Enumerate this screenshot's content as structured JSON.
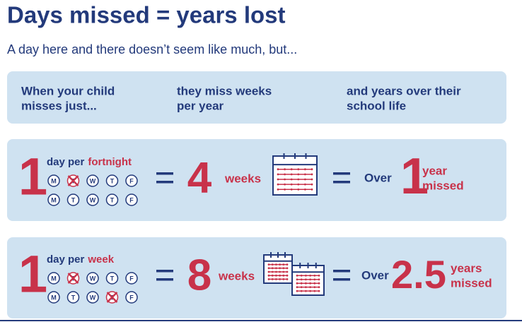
{
  "header": {
    "title": "Days missed = years lost",
    "subtitle": "A day here and there doesn’t seem like much, but..."
  },
  "columns": [
    [
      "When your child",
      "misses just..."
    ],
    [
      "they miss weeks",
      "per year"
    ],
    [
      "and years over their",
      "school life"
    ]
  ],
  "rows": [
    {
      "days": "1",
      "per": "day per",
      "period": "fortnight",
      "weeks": [
        [
          {
            "letter": "M",
            "missed": false
          },
          {
            "letter": "T",
            "missed": true
          },
          {
            "letter": "W",
            "missed": false
          },
          {
            "letter": "T",
            "missed": false
          },
          {
            "letter": "F",
            "missed": false
          }
        ],
        [
          {
            "letter": "M",
            "missed": false
          },
          {
            "letter": "T",
            "missed": false
          },
          {
            "letter": "W",
            "missed": false
          },
          {
            "letter": "T",
            "missed": false
          },
          {
            "letter": "F",
            "missed": false
          }
        ]
      ],
      "weeks_missed": "4",
      "weeks_unit": "weeks",
      "calendars": 1,
      "over": "Over",
      "years": "1",
      "years_unit": [
        "year",
        "missed"
      ]
    },
    {
      "days": "1",
      "per": "day per",
      "period": "week",
      "weeks": [
        [
          {
            "letter": "M",
            "missed": false
          },
          {
            "letter": "T",
            "missed": true
          },
          {
            "letter": "W",
            "missed": false
          },
          {
            "letter": "T",
            "missed": false
          },
          {
            "letter": "F",
            "missed": false
          }
        ],
        [
          {
            "letter": "M",
            "missed": false
          },
          {
            "letter": "T",
            "missed": false
          },
          {
            "letter": "W",
            "missed": false
          },
          {
            "letter": "T",
            "missed": true
          },
          {
            "letter": "F",
            "missed": false
          }
        ]
      ],
      "weeks_missed": "8",
      "weeks_unit": "weeks",
      "calendars": 2,
      "over": "Over",
      "years": "2.5",
      "years_unit": [
        "years",
        "missed"
      ]
    }
  ]
}
